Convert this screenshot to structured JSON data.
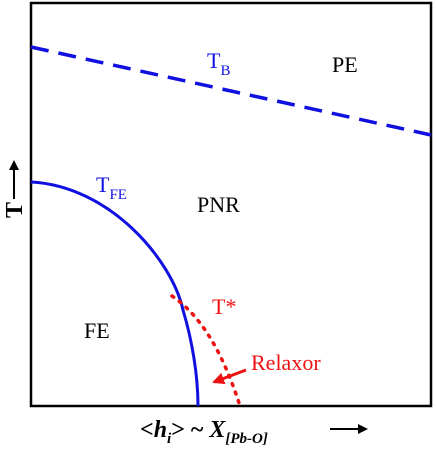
{
  "colors": {
    "frame": "#000000",
    "boundary_blue": "#1010e0",
    "relaxor_red": "#ee1111"
  },
  "regions": {
    "pe": "PE",
    "pnr": "PNR",
    "fe": "FE"
  },
  "curves": {
    "burns_temperature": {
      "main": "T",
      "subscript": "B"
    },
    "ferroelectric_transition": {
      "main": "T",
      "subscript": "FE"
    },
    "t_star": "T*"
  },
  "annotations": {
    "relaxor": "Relaxor"
  },
  "axes": {
    "y_label": "T",
    "x_label": {
      "open": "<",
      "h": "h",
      "h_subscript": "i",
      "close_tilde": "> ~ ",
      "x": "X",
      "x_subscript": "[Pb-O]"
    }
  }
}
